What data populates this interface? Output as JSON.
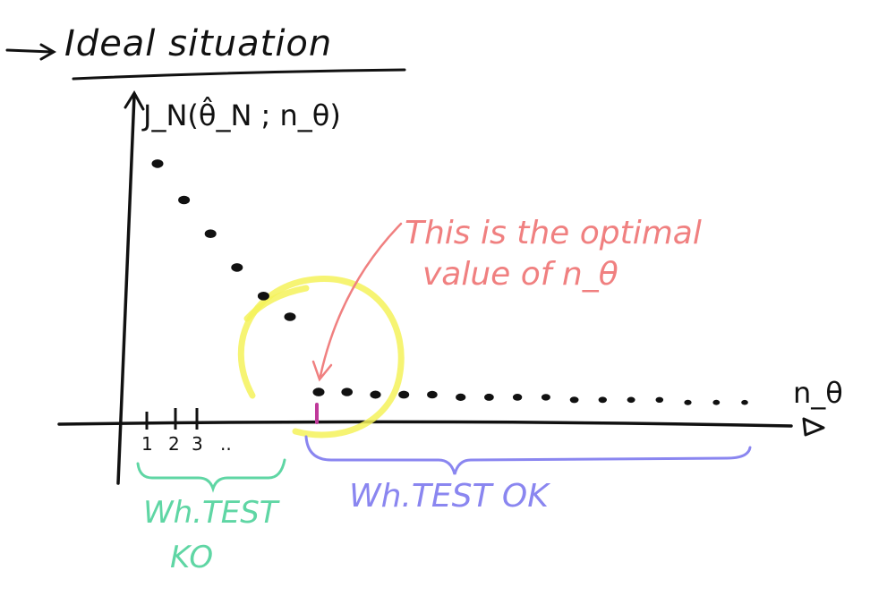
{
  "title": "Ideal situation",
  "y_axis_label": "J_N(θ̂_N ; n_θ)",
  "x_axis_label": "n_θ",
  "tick_labels": [
    "1",
    "2",
    "3",
    ".."
  ],
  "annotation": {
    "line1": "This is the optimal",
    "line2": "value of n_θ"
  },
  "bracket_labels": {
    "ko_line1": "Wh.TEST",
    "ko_line2": "KO",
    "ok": "Wh.TEST OK"
  },
  "colors": {
    "ink": "#111111",
    "highlight_circle": "#f4f25a",
    "annotation": "#f08080",
    "ko": "#5fd6a4",
    "ok": "#8a86f0",
    "optimal_marker": "#c0399a"
  },
  "chart_data": {
    "type": "scatter",
    "title": "Ideal situation",
    "xlabel": "n_θ",
    "ylabel": "J_N(θ̂_N ; n_θ)",
    "x_tick_labels": [
      "1",
      "2",
      "3",
      ".."
    ],
    "series": [
      {
        "values": [
          0.99,
          0.85,
          0.72,
          0.59,
          0.48,
          0.4,
          0.11,
          0.11,
          0.1,
          0.1,
          0.1,
          0.09,
          0.09,
          0.09,
          0.09,
          0.08,
          0.08,
          0.08,
          0.08,
          0.07,
          0.07,
          0.07
        ]
      }
    ],
    "optimal_index": 6,
    "regions": [
      {
        "label": "Wh.TEST KO",
        "from_index": 0,
        "to_index": 5
      },
      {
        "label": "Wh.TEST OK",
        "from_index": 6,
        "to_index": 21
      }
    ],
    "grid": false,
    "legend": "none"
  }
}
